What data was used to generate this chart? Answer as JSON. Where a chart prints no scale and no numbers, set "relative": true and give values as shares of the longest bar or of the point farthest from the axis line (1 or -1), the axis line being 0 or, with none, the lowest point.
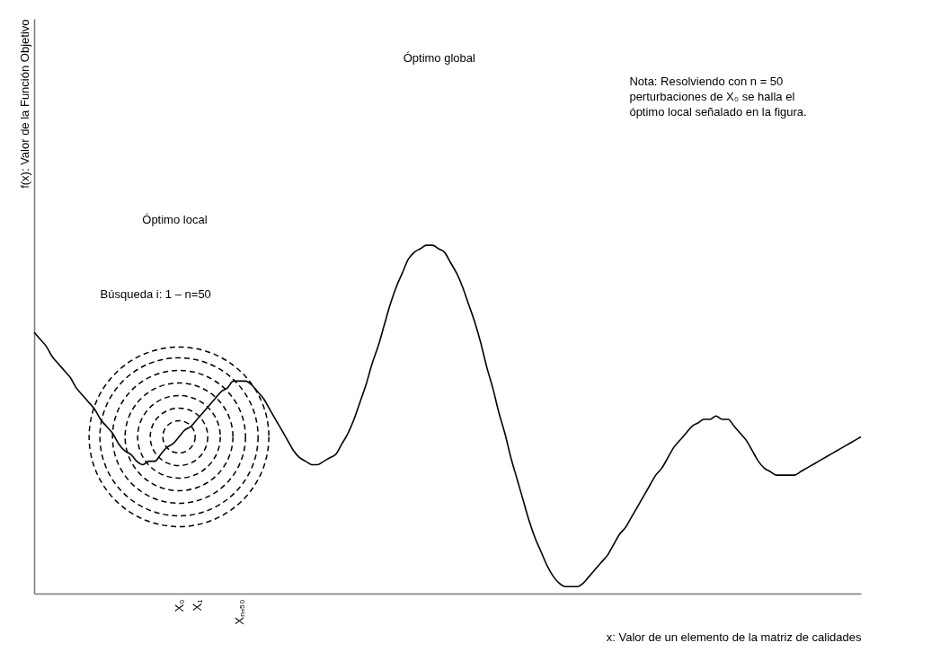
{
  "chart_data": {
    "type": "line",
    "relative": true,
    "xlabel": "x: Valor de un elemento de la matriz de calidades",
    "ylabel": "f(x): Valor de la Función Objetivo",
    "categories": [
      null,
      null,
      null,
      null,
      null,
      null,
      null,
      null,
      null,
      null,
      null,
      null,
      null,
      null,
      null,
      null,
      null,
      null,
      null,
      null,
      null,
      null,
      null,
      null,
      "X₀",
      null,
      null,
      "X₁",
      null,
      null,
      null,
      null,
      null,
      null,
      "Xₙ₌₅₀",
      null,
      null,
      null,
      null,
      null,
      null,
      null,
      null,
      null,
      null,
      null,
      null,
      null,
      null,
      null,
      null,
      null,
      null,
      null,
      null,
      null,
      null,
      null,
      null,
      null,
      null,
      null,
      null,
      null,
      null,
      null,
      null,
      null,
      null,
      null,
      null,
      null,
      null,
      null,
      null,
      null,
      null,
      null,
      null,
      null,
      null,
      null,
      null,
      null,
      null,
      null,
      null,
      null,
      null,
      null,
      null,
      null,
      null,
      null,
      null,
      null,
      null,
      null,
      null,
      null,
      null,
      null,
      null,
      null,
      null,
      null,
      null,
      null,
      null,
      null,
      null,
      null,
      null,
      null,
      null,
      null,
      null,
      null,
      null,
      null,
      null,
      null,
      null,
      null,
      null,
      null,
      null,
      null,
      null,
      null,
      null,
      null,
      null,
      null,
      null,
      null,
      null,
      null
    ],
    "series": [
      {
        "color": "#000000",
        "values": [
          0.75,
          0.73,
          0.71,
          0.68,
          0.66,
          0.64,
          0.62,
          0.59,
          0.57,
          0.55,
          0.53,
          0.5,
          0.48,
          0.46,
          0.43,
          0.41,
          0.4,
          0.38,
          0.37,
          0.38,
          0.38,
          0.4,
          0.42,
          0.43,
          0.45,
          0.47,
          0.48,
          0.5,
          0.52,
          0.54,
          0.56,
          0.58,
          0.59,
          0.61,
          0.61,
          0.61,
          0.6,
          0.58,
          0.56,
          0.53,
          0.5,
          0.47,
          0.44,
          0.41,
          0.39,
          0.38,
          0.37,
          0.37,
          0.38,
          0.39,
          0.4,
          0.43,
          0.46,
          0.5,
          0.55,
          0.6,
          0.66,
          0.71,
          0.77,
          0.83,
          0.88,
          0.92,
          0.96,
          0.98,
          0.99,
          1,
          1,
          0.99,
          0.98,
          0.95,
          0.92,
          0.88,
          0.83,
          0.78,
          0.72,
          0.65,
          0.59,
          0.52,
          0.46,
          0.39,
          0.33,
          0.27,
          0.21,
          0.16,
          0.12,
          0.08,
          0.05,
          0.03,
          0.02,
          0.02,
          0.02,
          0.03,
          0.05,
          0.07,
          0.09,
          0.11,
          0.14,
          0.17,
          0.19,
          0.22,
          0.25,
          0.28,
          0.31,
          0.34,
          0.36,
          0.39,
          0.42,
          0.44,
          0.46,
          0.48,
          0.49,
          0.5,
          0.5,
          0.51,
          0.5,
          0.5,
          0.48,
          0.46,
          0.44,
          0.41,
          0.38,
          0.36,
          0.35,
          0.34,
          0.34,
          0.34,
          0.34,
          0.35,
          0.36,
          0.37,
          0.38,
          0.39,
          0.4,
          0.41,
          0.42,
          0.43,
          0.44,
          0.45
        ]
      }
    ],
    "annotations": [
      "Óptimo global",
      "Óptimo local",
      "Búsqueda i: 1 – n=50",
      "Nota: Resolviendo con n = 50 perturbaciones de X₀ se halla el óptimo local señalado en la figura."
    ]
  }
}
